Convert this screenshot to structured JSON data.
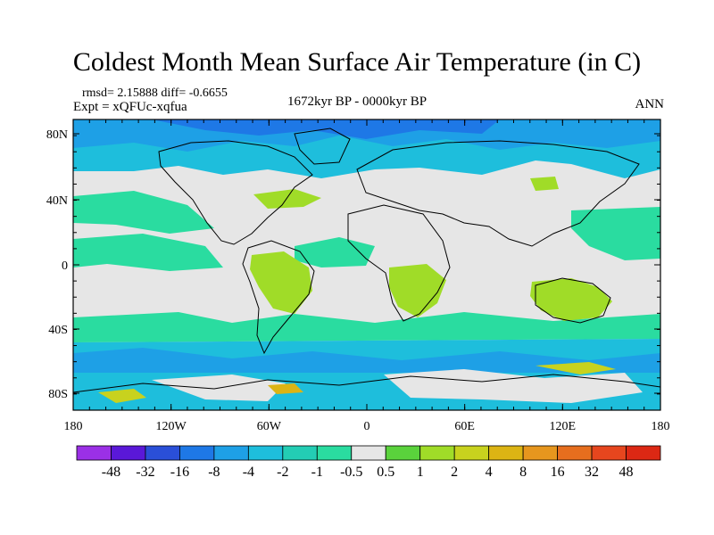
{
  "title": "Coldest Month Mean Surface Air Temperature (in C)",
  "stats": {
    "rmsd_line": "rmsd= 2.15888 diff= -0.6655",
    "expt_line": "Expt = xQFUc-xqfua"
  },
  "period": "1672kyr BP - 0000kyr BP",
  "season": "ANN",
  "lat_ticks": [
    "80N",
    "40N",
    "0",
    "40S",
    "80S"
  ],
  "lon_ticks": [
    "180",
    "120W",
    "60W",
    "0",
    "60E",
    "120E",
    "180"
  ],
  "colorbar": {
    "labels": [
      "-48",
      "-32",
      "-16",
      "-8",
      "-4",
      "-2",
      "-1",
      "-0.5",
      "0.5",
      "1",
      "2",
      "4",
      "8",
      "16",
      "32",
      "48"
    ],
    "colors": [
      "#9b30e6",
      "#5a18d8",
      "#2a4fd8",
      "#1e78e6",
      "#1ea0e6",
      "#1ebedc",
      "#23cdb4",
      "#2adca0",
      "#e6e6e6",
      "#5ad23c",
      "#a0dc28",
      "#c8d21e",
      "#dcb414",
      "#e6961e",
      "#e66e1e",
      "#e6461e",
      "#dc2814"
    ]
  },
  "map_colors": {
    "background": "#e6e6e6",
    "ocean_cool": "#2adca0",
    "cool": "#1ebedc",
    "colder": "#1ea0e6",
    "cold": "#1e78e6",
    "warm": "#a0dc28",
    "warm2": "#c8d21e",
    "warm3": "#dcb414"
  }
}
